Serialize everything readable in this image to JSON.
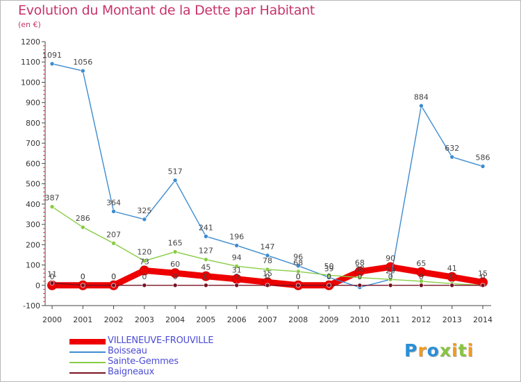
{
  "title": "Evolution du Montant de la Dette par Habitant",
  "unit": "(en €)",
  "logo": "Proxiti",
  "chart_data": {
    "type": "line",
    "title": "Evolution du Montant de la Dette par Habitant",
    "ylabel": "(en €)",
    "x": [
      "2000",
      "2001",
      "2002",
      "2003",
      "2004",
      "2005",
      "2006",
      "2007",
      "2008",
      "2009",
      "2010",
      "2011",
      "2012",
      "2013",
      "2014"
    ],
    "ylim": [
      -100,
      1200
    ],
    "yticks": [
      "-100",
      "0",
      "100",
      "200",
      "300",
      "400",
      "500",
      "600",
      "700",
      "800",
      "900",
      "1000",
      "1100",
      "1200"
    ],
    "grid": false,
    "legend": "bottom-left",
    "series": [
      {
        "name": "VILLENEUVE-FROUVILLE",
        "color": "#ee0000",
        "values": [
          0,
          0,
          0,
          73,
          60,
          45,
          31,
          15,
          0,
          0,
          68,
          90,
          65,
          41,
          15
        ],
        "labels": [
          "0",
          "0",
          "0",
          "73",
          "60",
          "45",
          "31",
          "15",
          "0",
          "0",
          "68",
          "90",
          "65",
          "41",
          "15"
        ]
      },
      {
        "name": "Boisseau",
        "color": "#3d8bd0",
        "values": [
          1091,
          1056,
          364,
          325,
          517,
          241,
          196,
          147,
          96,
          39,
          -10,
          29,
          884,
          632,
          586
        ],
        "labels": [
          "1091",
          "1056",
          "364",
          "325",
          "517",
          "241",
          "196",
          "147",
          "96",
          "39",
          "",
          "29",
          "884",
          "632",
          "586"
        ]
      },
      {
        "name": "Sainte-Gemmes",
        "color": "#88cc44",
        "values": [
          387,
          286,
          207,
          120,
          165,
          127,
          94,
          78,
          68,
          50,
          38,
          29,
          20,
          8,
          0
        ],
        "labels": [
          "387",
          "286",
          "207",
          "120",
          "165",
          "127",
          "94",
          "78",
          "68",
          "50",
          "38",
          "",
          "",
          "",
          ""
        ]
      },
      {
        "name": "Baigneaux",
        "color": "#771122",
        "values": [
          11,
          0,
          0,
          0,
          0,
          0,
          0,
          0,
          0,
          0,
          0,
          0,
          0,
          0,
          0
        ],
        "labels": [
          "11",
          "0",
          "0",
          "0",
          "0",
          "0",
          "0",
          "0",
          "0",
          "0",
          "0",
          "0",
          "0",
          "0",
          "0"
        ]
      }
    ]
  }
}
